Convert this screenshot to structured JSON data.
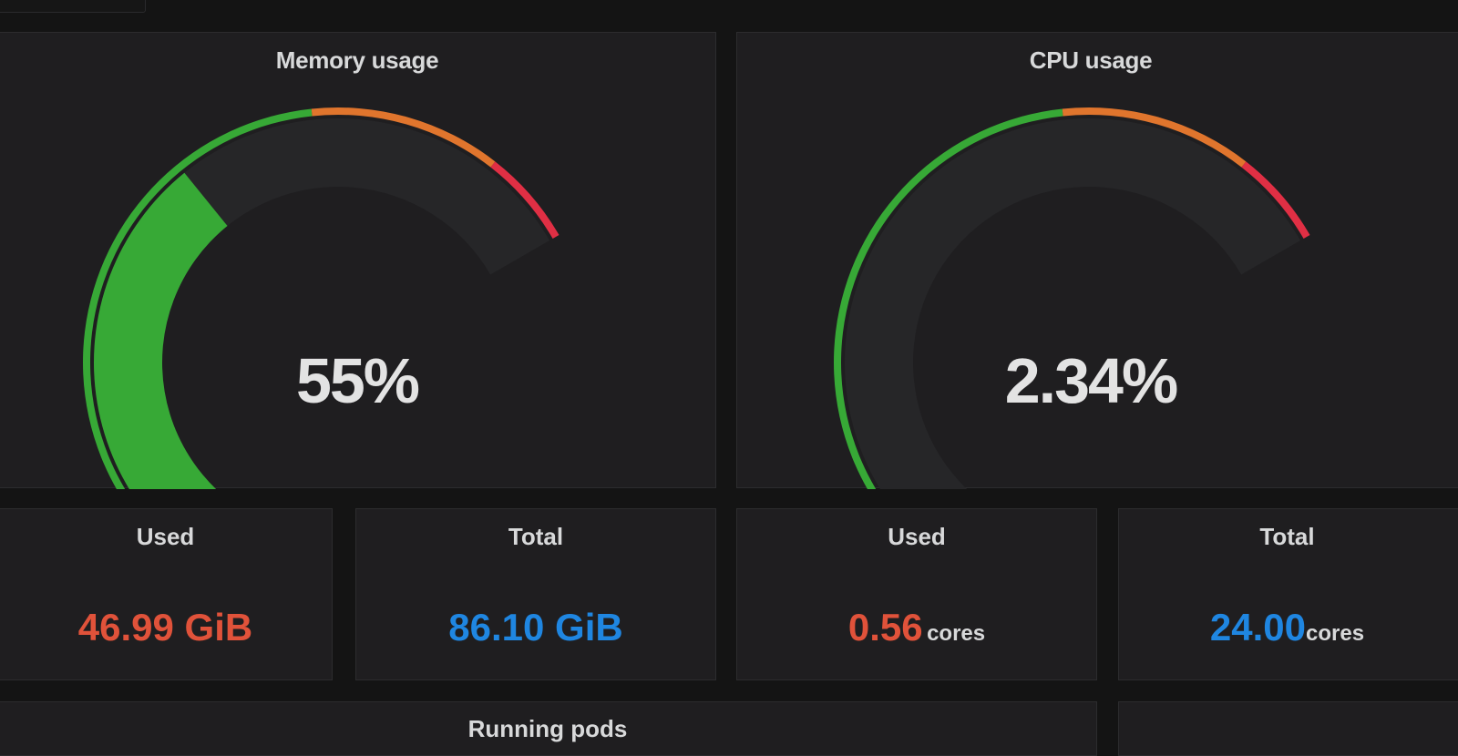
{
  "colors": {
    "green": "#37a936",
    "orange": "#e0752d",
    "red": "#e02f44",
    "used_value": "#e0523a",
    "total_value": "#1f86e1",
    "gauge_track": "#262628"
  },
  "memory_gauge": {
    "title": "Memory usage",
    "display": "55%",
    "fraction": 0.55
  },
  "cpu_gauge": {
    "title": "CPU usage",
    "display": "2.34%",
    "fraction": 0.0234
  },
  "thresholds": [
    {
      "from": 0,
      "to": 0.7,
      "color": "#37a936"
    },
    {
      "from": 0.7,
      "to": 0.9,
      "color": "#e0752d"
    },
    {
      "from": 0.9,
      "to": 1.0,
      "color": "#e02f44"
    }
  ],
  "stats": {
    "mem_used": {
      "title": "Used",
      "value": "46.99 GiB",
      "unit": ""
    },
    "mem_total": {
      "title": "Total",
      "value": "86.10 GiB",
      "unit": ""
    },
    "cpu_used": {
      "title": "Used",
      "value": "0.56",
      "unit": "cores"
    },
    "cpu_total": {
      "title": "Total",
      "value": "24.00",
      "unit": "cores"
    }
  },
  "bottom": {
    "running_pods_title": "Running pods"
  }
}
